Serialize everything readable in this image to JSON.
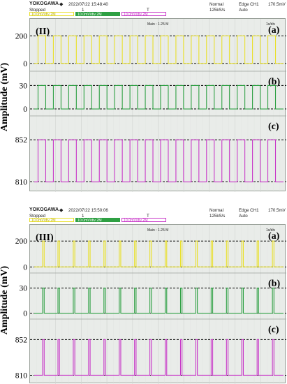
{
  "colors": {
    "ch1": "#e9e02a",
    "ch2": "#2ea043",
    "ch3": "#c838c8",
    "grid": "#c9cdc9",
    "dashed": "#000000"
  },
  "figures": [
    {
      "label": "(II)",
      "header": {
        "brand": "YOKOGAWA",
        "timestamp": "2022/07/22 15:48:40",
        "status": "Stopped",
        "marker": "1",
        "trigger_marker": "T",
        "mode": "Normal",
        "rate": "125kS/s",
        "trigger": "Edge CH1",
        "trigger_level": "170.5mV",
        "trigger_mode": "Auto",
        "ch1_tag": "10.0mV/div 2M",
        "ch2_tag": "10.0mV/div 2M",
        "ch3_tag": "10.0mV/div 2M"
      },
      "zoom_text": "Main : 1.25 M",
      "timebase": "1s/div",
      "subplots": [
        {
          "label": "(a)",
          "levels": [
            "200",
            "0"
          ],
          "color": "ch1",
          "waveform": "square",
          "duty": 0.5
        },
        {
          "label": "(b)",
          "levels": [
            "30",
            "0"
          ],
          "color": "ch2",
          "waveform": "square",
          "duty": 0.5
        },
        {
          "label": "(c)",
          "levels": [
            "852",
            "810"
          ],
          "color": "ch3",
          "waveform": "square",
          "duty": 0.5
        }
      ],
      "ylabel": "Amplitude (mV)"
    },
    {
      "label": "(III)",
      "header": {
        "brand": "YOKOGAWA",
        "timestamp": "2022/07/22 15:50:06",
        "status": "Stopped",
        "marker": "1",
        "trigger_marker": "T",
        "mode": "Normal",
        "rate": "125kS/s",
        "trigger": "Edge CH1",
        "trigger_level": "170.5mV",
        "trigger_mode": "Auto",
        "ch1_tag": "10.0mV/div 2M",
        "ch2_tag": "10.0mV/div 2M",
        "ch3_tag": "10.0mV/div 2M"
      },
      "zoom_text": "Main : 1.25 M",
      "timebase": "1s/div",
      "subplots": [
        {
          "label": "(a)",
          "levels": [
            "200",
            "0"
          ],
          "color": "ch1",
          "waveform": "pulse",
          "duty": 0.1
        },
        {
          "label": "(b)",
          "levels": [
            "30",
            "0"
          ],
          "color": "ch2",
          "waveform": "pulse",
          "duty": 0.1
        },
        {
          "label": "(c)",
          "levels": [
            "852",
            "810"
          ],
          "color": "ch3",
          "waveform": "pulse",
          "duty": 0.1
        }
      ],
      "ylabel": "Amplitude (mV)"
    }
  ]
}
